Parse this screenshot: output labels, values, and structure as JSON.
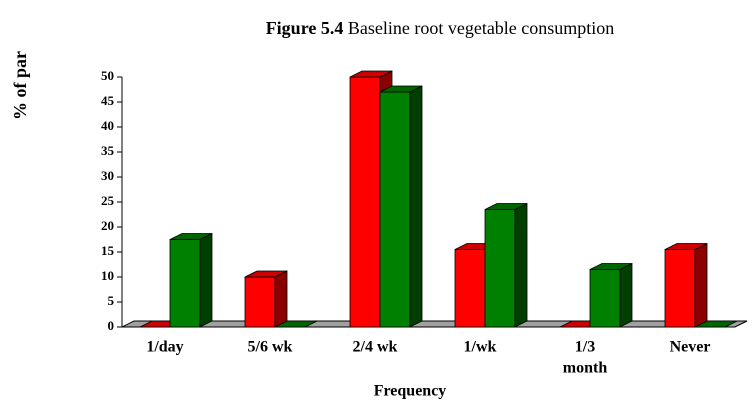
{
  "chart_data": {
    "type": "bar3d",
    "figure_label": "Figure 5.4",
    "title": "Baseline root vegetable consumption",
    "ylabel": "% of par",
    "xlabel": "Frequency",
    "categories": [
      "1/day",
      "5/6 wk",
      "2/4 wk",
      "1/wk",
      [
        "1/3",
        "month"
      ],
      "Never"
    ],
    "series": [
      {
        "color": "#ff0000",
        "side_color": "#8b0000",
        "top_color": "#cc0000",
        "values": [
          0,
          10,
          50,
          15.5,
          0,
          15.5
        ]
      },
      {
        "color": "#008000",
        "side_color": "#003f00",
        "top_color": "#006400",
        "values": [
          17.5,
          0,
          47,
          23.5,
          11.5,
          0
        ]
      }
    ],
    "ylim": [
      0,
      50
    ],
    "yticks": [
      0,
      5,
      10,
      15,
      20,
      25,
      30,
      35,
      40,
      45,
      50
    ]
  }
}
